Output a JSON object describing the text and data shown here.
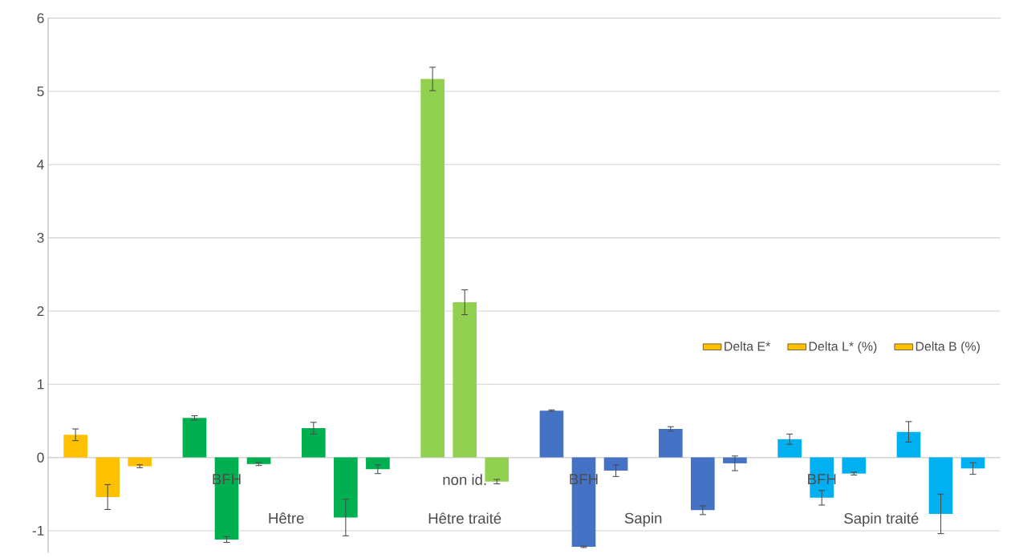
{
  "chart_data": {
    "type": "bar",
    "categories": [
      null,
      "BFH",
      null,
      "non id.",
      "BFH",
      null,
      "BFH",
      null
    ],
    "annotations": [
      "Hêtre",
      "Hêtre traité",
      "Sapin",
      "Sapin traité"
    ],
    "series": [
      {
        "name": "Delta E*",
        "colors": [
          "#ffc000",
          "#00b050",
          "#00b050",
          "#92d050",
          "#4472c4",
          "#4472c4",
          "#00b0f0",
          "#00b0f0"
        ],
        "values": [
          0.31,
          0.54,
          0.4,
          5.17,
          0.64,
          0.39,
          0.25,
          0.35
        ],
        "errors": [
          0.08,
          0.03,
          0.08,
          0.16,
          0.01,
          0.03,
          0.07,
          0.14
        ]
      },
      {
        "name": "Delta L* (%)",
        "colors": [
          "#ffc000",
          "#00b050",
          "#00b050",
          "#92d050",
          "#4472c4",
          "#4472c4",
          "#00b0f0",
          "#00b0f0"
        ],
        "values": [
          -0.54,
          -1.12,
          -0.82,
          2.12,
          -1.22,
          -0.72,
          -0.55,
          -0.77
        ],
        "errors": [
          0.17,
          0.04,
          0.25,
          0.17,
          0.01,
          0.06,
          0.1,
          0.27
        ]
      },
      {
        "name": "Delta B (%)",
        "colors": [
          "#ffc000",
          "#00b050",
          "#00b050",
          "#92d050",
          "#4472c4",
          "#4472c4",
          "#00b0f0",
          "#00b0f0"
        ],
        "values": [
          -0.12,
          -0.09,
          -0.16,
          -0.33,
          -0.18,
          -0.08,
          -0.22,
          -0.15
        ],
        "errors": [
          0.02,
          0.02,
          0.06,
          0.03,
          0.08,
          0.1,
          0.02,
          0.08
        ]
      }
    ],
    "ylim": [
      -1.3,
      6
    ],
    "yticks": [
      -1,
      0,
      1,
      2,
      3,
      4,
      5,
      6
    ],
    "grid": "y",
    "legend": "right"
  }
}
